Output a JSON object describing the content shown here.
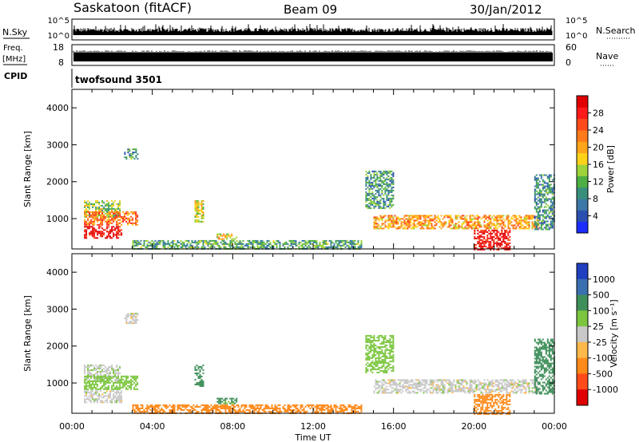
{
  "header": {
    "station": "Saskatoon (fitACF)",
    "beam": "Beam 09",
    "date": "30/Jan/2012"
  },
  "params": {
    "nsky_label": "N.Sky",
    "nsky_ticks": [
      "10^5",
      "10^0"
    ],
    "nsearch_label": "N.Search",
    "nsearch_ticks": [
      "10^5",
      "10^0"
    ],
    "freq_label": "Freq.",
    "freq_unit": "[MHz]",
    "freq_ticks": [
      "18",
      "8"
    ],
    "nave_label": "Nave",
    "nave_ticks": [
      "60",
      "0"
    ],
    "cpid_label": "CPID",
    "cpid_value": "twofsound 3501"
  },
  "chart_data": [
    {
      "type": "heatmap",
      "parameter": "power",
      "ylabel": "Slant Range [km]",
      "ylim": [
        180,
        4500
      ],
      "yticks": [
        "1000",
        "2000",
        "3000",
        "4000"
      ],
      "xlim_hours": [
        0,
        24
      ],
      "colorbar": {
        "label": "Power [dB]",
        "ticks": [
          "4",
          "8",
          "12",
          "16",
          "20",
          "24",
          "28"
        ],
        "colors": [
          "#1a2cff",
          "#2a4fb0",
          "#3b78a8",
          "#3a8f7c",
          "#4fae43",
          "#9ed33a",
          "#ffd21a",
          "#ffa51a",
          "#ff7a1a",
          "#ff4a1a",
          "#ff1a1a",
          "#e00000"
        ]
      },
      "echo_regions": [
        {
          "t": [
            0.6,
            2.4
          ],
          "range": [
            1050,
            1500
          ],
          "level": 12
        },
        {
          "t": [
            0.6,
            3.3
          ],
          "range": [
            850,
            1200
          ],
          "level": 20
        },
        {
          "t": [
            0.6,
            2.5
          ],
          "range": [
            480,
            800
          ],
          "level": 26
        },
        {
          "t": [
            2.6,
            3.3
          ],
          "range": [
            2600,
            2900
          ],
          "level": 7
        },
        {
          "t": [
            6.1,
            6.5
          ],
          "range": [
            900,
            1500
          ],
          "level": 14
        },
        {
          "t": [
            7.2,
            8.2
          ],
          "range": [
            450,
            600
          ],
          "level": 16
        },
        {
          "t": [
            3.0,
            14.4
          ],
          "range": [
            180,
            420
          ],
          "level": 9
        },
        {
          "t": [
            14.6,
            16.0
          ],
          "range": [
            1300,
            2300
          ],
          "level": 8
        },
        {
          "t": [
            15.0,
            23.2
          ],
          "range": [
            750,
            1100
          ],
          "level": 18
        },
        {
          "t": [
            20.0,
            21.8
          ],
          "range": [
            180,
            700
          ],
          "level": 27
        },
        {
          "t": [
            23.0,
            24.0
          ],
          "range": [
            700,
            2200
          ],
          "level": 7
        }
      ]
    },
    {
      "type": "heatmap",
      "parameter": "velocity",
      "ylabel": "Slant Range [km]",
      "ylim": [
        180,
        4500
      ],
      "yticks": [
        "1000",
        "2000",
        "3000",
        "4000"
      ],
      "xlim_hours": [
        0,
        24
      ],
      "xticks": [
        "00:00",
        "04:00",
        "08:00",
        "12:00",
        "16:00",
        "20:00",
        "00:00"
      ],
      "xlabel": "Time UT",
      "colorbar": {
        "label": "Velocity [m s⁻¹]",
        "ticks": [
          "1000",
          "500",
          "100",
          "25",
          "-25",
          "-100",
          "-500",
          "-1000"
        ],
        "colors": [
          "#2040c0",
          "#3a6fb0",
          "#3f8f5a",
          "#7cc63f",
          "#c8c8c8",
          "#ffb84a",
          "#ff8a1a",
          "#ff4a1a",
          "#e00000"
        ]
      },
      "echo_regions": [
        {
          "t": [
            0.6,
            2.4
          ],
          "range": [
            1050,
            1500
          ],
          "v": 10
        },
        {
          "t": [
            0.6,
            3.3
          ],
          "range": [
            850,
            1200
          ],
          "v": 60
        },
        {
          "t": [
            0.6,
            2.5
          ],
          "range": [
            480,
            800
          ],
          "v": 0
        },
        {
          "t": [
            2.6,
            3.3
          ],
          "range": [
            2600,
            2900
          ],
          "v": 0
        },
        {
          "t": [
            6.1,
            6.5
          ],
          "range": [
            900,
            1500
          ],
          "v": 150
        },
        {
          "t": [
            7.2,
            8.2
          ],
          "range": [
            450,
            600
          ],
          "v": 120
        },
        {
          "t": [
            3.0,
            14.4
          ],
          "range": [
            180,
            420
          ],
          "v": -150
        },
        {
          "t": [
            14.6,
            16.0
          ],
          "range": [
            1300,
            2300
          ],
          "v": 60
        },
        {
          "t": [
            15.0,
            23.2
          ],
          "range": [
            750,
            1100
          ],
          "v": 0
        },
        {
          "t": [
            20.0,
            21.8
          ],
          "range": [
            180,
            700
          ],
          "v": -300
        },
        {
          "t": [
            23.0,
            24.0
          ],
          "range": [
            700,
            2200
          ],
          "v": 300
        }
      ]
    }
  ]
}
